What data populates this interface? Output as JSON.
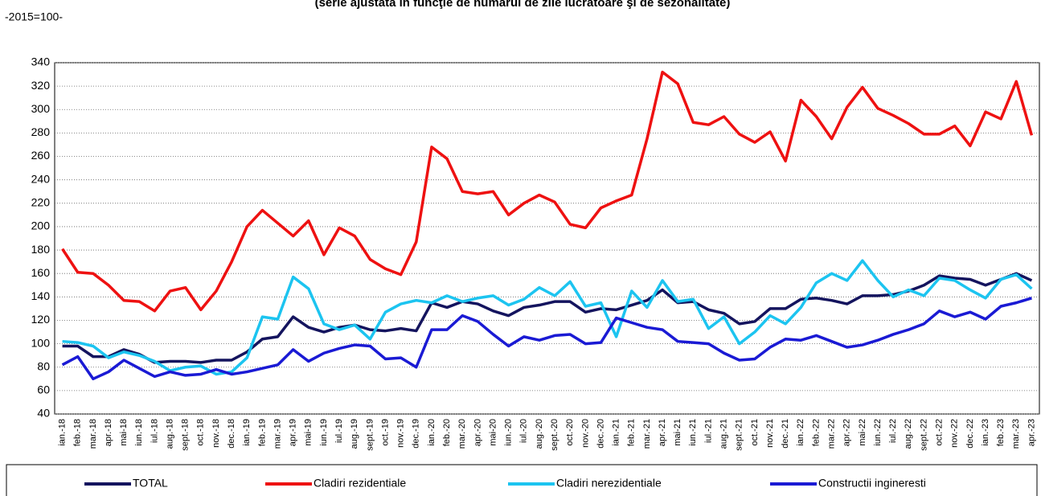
{
  "chart_data": {
    "type": "line",
    "title": "(serie ajustată în funcţie de numărul de zile lucrătoare şi de sezonalitate)",
    "subtitle": "-2015=100-",
    "categories": [
      "ian.-18",
      "feb.-18",
      "mar.-18",
      "apr.-18",
      "mai-18",
      "iun.-18",
      "iul.-18",
      "aug.-18",
      "sept.-18",
      "oct.-18",
      "nov.-18",
      "dec.-18",
      "ian.-19",
      "feb.-19",
      "mar.-19",
      "apr.-19",
      "mai-19",
      "iun.-19",
      "iul.-19",
      "aug.-19",
      "sept.-19",
      "oct.-19",
      "nov.-19",
      "dec.-19",
      "ian.-20",
      "feb.-20",
      "mar.-20",
      "apr.-20",
      "mai-20",
      "iun.-20",
      "iul.-20",
      "aug.-20",
      "sept.-20",
      "oct.-20",
      "nov.-20",
      "dec.-20",
      "ian.-21",
      "feb.-21",
      "mar.-21",
      "apr.-21",
      "mai-21",
      "iun.-21",
      "iul.-21",
      "aug.-21",
      "sept.-21",
      "oct.-21",
      "nov.-21",
      "dec.-21",
      "ian.-22",
      "feb.-22",
      "mar.-22",
      "apr.-22",
      "mai-22",
      "iun.-22",
      "iul.-22",
      "aug.-22",
      "sept.-22",
      "oct.-22",
      "nov.-22",
      "dec.-22",
      "ian.-23",
      "feb.-23",
      "mar.-23",
      "apr.-23"
    ],
    "series": [
      {
        "name": "TOTAL",
        "color": "#14145e",
        "values": [
          98,
          98,
          89,
          89,
          95,
          91,
          84,
          85,
          85,
          84,
          86,
          86,
          93,
          104,
          106,
          123,
          114,
          110,
          114,
          116,
          112,
          111,
          113,
          111,
          135,
          131,
          136,
          134,
          128,
          124,
          131,
          133,
          136,
          136,
          127,
          130,
          129,
          133,
          137,
          146,
          135,
          136,
          129,
          126,
          117,
          119,
          130,
          130,
          138,
          139,
          137,
          134,
          141,
          141,
          142,
          145,
          150,
          158,
          156,
          155,
          150,
          155,
          160,
          154
        ]
      },
      {
        "name": "Cladiri rezidentiale",
        "color": "#ee1111",
        "values": [
          181,
          161,
          160,
          150,
          137,
          136,
          128,
          145,
          148,
          129,
          145,
          170,
          200,
          214,
          203,
          192,
          205,
          176,
          199,
          192,
          172,
          164,
          159,
          187,
          268,
          258,
          230,
          228,
          230,
          210,
          220,
          227,
          221,
          202,
          199,
          216,
          222,
          227,
          275,
          332,
          322,
          289,
          287,
          294,
          279,
          272,
          281,
          256,
          308,
          294,
          275,
          302,
          319,
          301,
          295,
          288,
          279,
          279,
          286,
          269,
          298,
          292,
          324,
          278
        ]
      },
      {
        "name": "Cladiri nerezidentiale",
        "color": "#1cc4f0",
        "values": [
          102,
          101,
          98,
          88,
          93,
          90,
          85,
          77,
          80,
          81,
          74,
          76,
          88,
          123,
          121,
          157,
          147,
          117,
          112,
          116,
          104,
          127,
          134,
          137,
          135,
          141,
          136,
          139,
          141,
          133,
          138,
          148,
          141,
          153,
          132,
          135,
          106,
          145,
          131,
          154,
          136,
          138,
          113,
          123,
          100,
          110,
          124,
          117,
          131,
          152,
          160,
          154,
          171,
          154,
          140,
          146,
          141,
          156,
          154,
          146,
          139,
          155,
          159,
          147
        ]
      },
      {
        "name": "Constructii ingineresti",
        "color": "#1a1ad4",
        "values": [
          82,
          89,
          70,
          76,
          86,
          79,
          72,
          76,
          73,
          74,
          78,
          74,
          76,
          79,
          82,
          95,
          85,
          92,
          96,
          99,
          98,
          87,
          88,
          80,
          112,
          112,
          124,
          119,
          108,
          98,
          106,
          103,
          107,
          108,
          100,
          101,
          122,
          118,
          114,
          112,
          102,
          101,
          100,
          92,
          86,
          87,
          97,
          104,
          103,
          107,
          102,
          97,
          99,
          103,
          108,
          112,
          117,
          128,
          123,
          127,
          121,
          132,
          135,
          139
        ]
      }
    ],
    "ylim": [
      40,
      340
    ],
    "yticks": [
      40,
      60,
      80,
      100,
      120,
      140,
      160,
      180,
      200,
      220,
      240,
      260,
      280,
      300,
      320,
      340
    ],
    "grid": true
  }
}
